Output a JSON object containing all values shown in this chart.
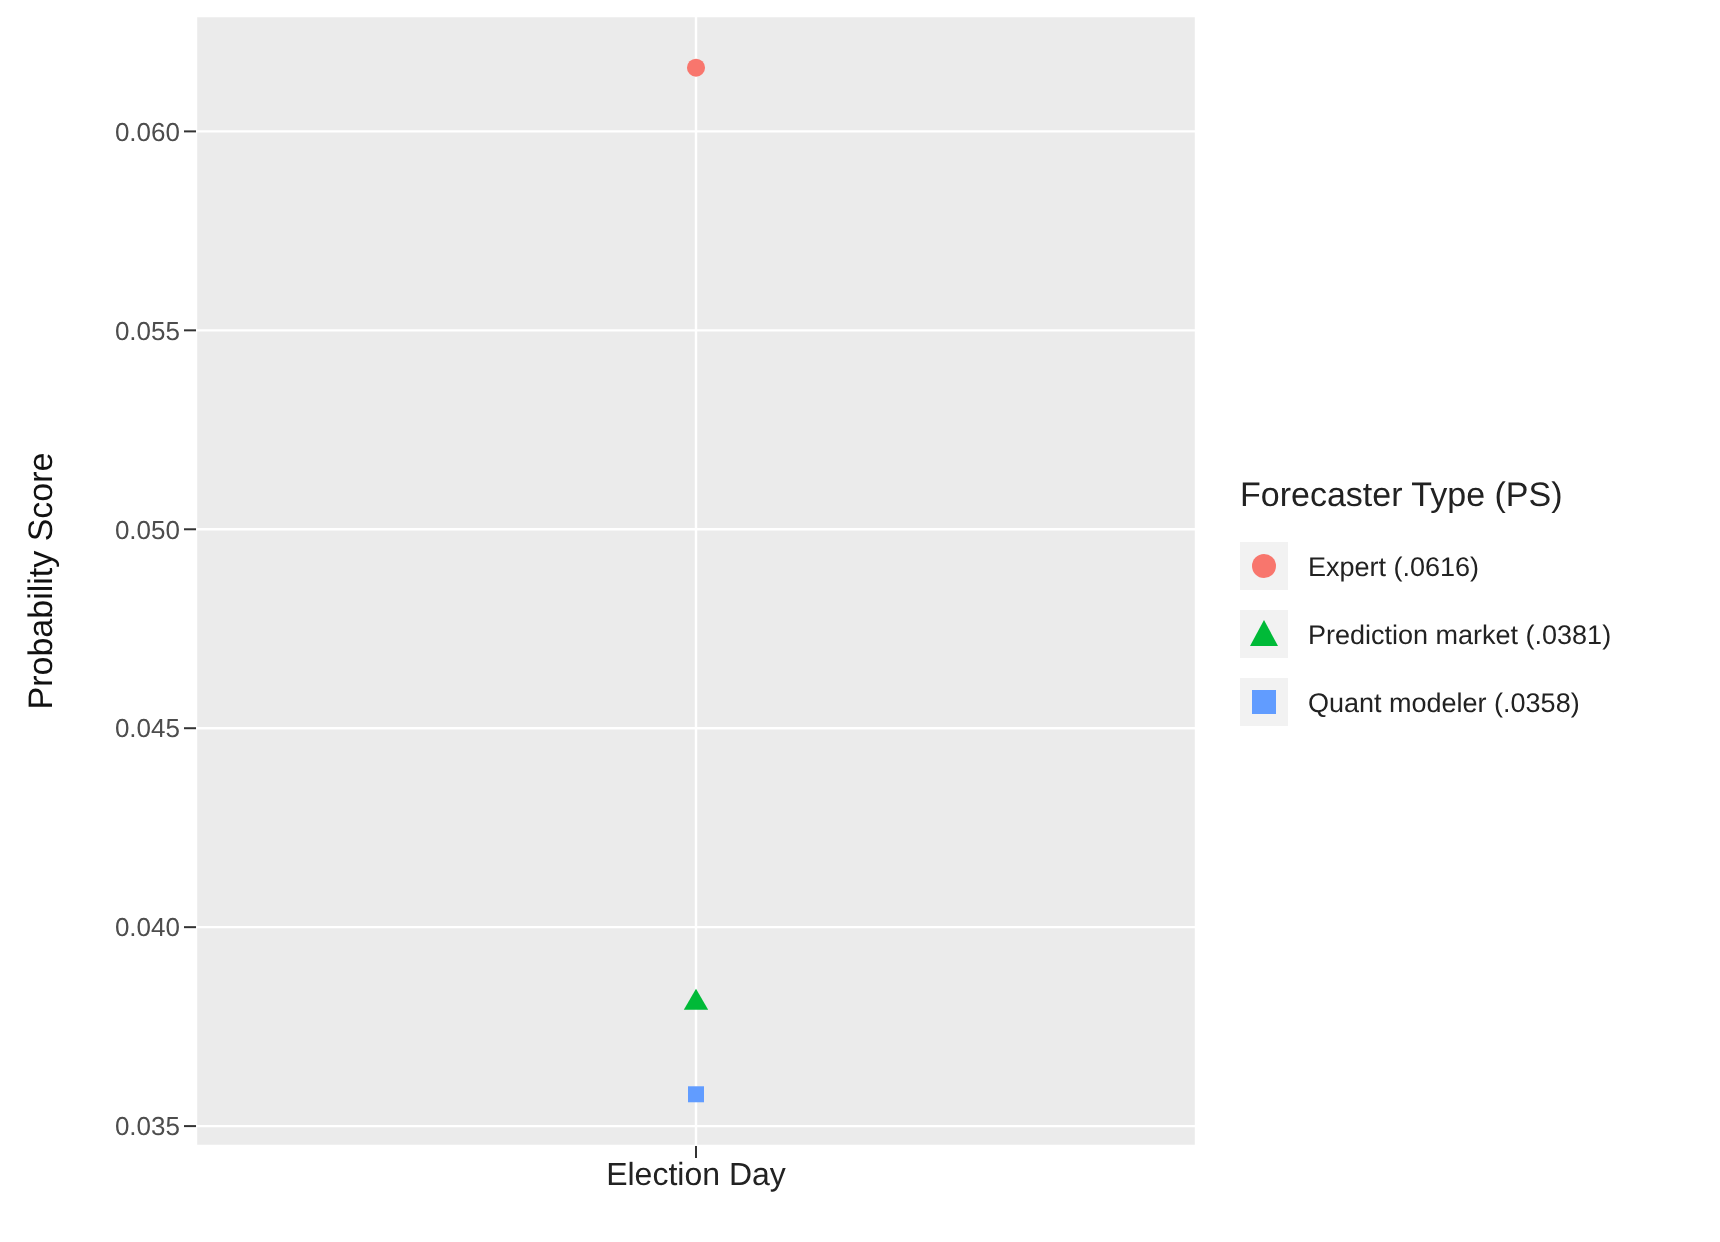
{
  "chart_data": {
    "type": "scatter",
    "ylabel": "Probability Score",
    "legend_title": "Forecaster Type (PS)",
    "categories": [
      "Election Day"
    ],
    "series": [
      {
        "name": "Expert (.0616)",
        "color": "#f8766d",
        "marker": "circle",
        "values": [
          0.0616
        ]
      },
      {
        "name": "Prediction market (.0381)",
        "color": "#00ba38",
        "marker": "triangle",
        "values": [
          0.0381
        ]
      },
      {
        "name": "Quant modeler (.0358)",
        "color": "#619cff",
        "marker": "square",
        "values": [
          0.0358
        ]
      }
    ],
    "ylim": [
      0.0345,
      0.0629
    ],
    "yticks": [
      {
        "value": 0.035,
        "label": "0.035"
      },
      {
        "value": 0.04,
        "label": "0.040"
      },
      {
        "value": 0.045,
        "label": "0.045"
      },
      {
        "value": 0.05,
        "label": "0.050"
      },
      {
        "value": 0.055,
        "label": "0.055"
      },
      {
        "value": 0.06,
        "label": "0.060"
      }
    ],
    "grid": true,
    "legend": "right"
  }
}
